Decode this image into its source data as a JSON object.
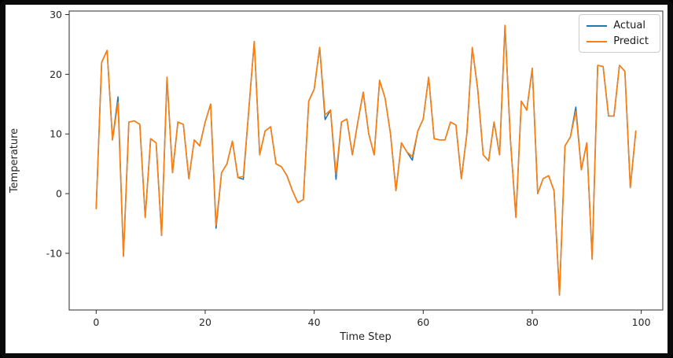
{
  "window": {
    "frame_color": "#0a0a0a",
    "figure_background": "#ffffff"
  },
  "chart_data": {
    "type": "line",
    "title": "",
    "xlabel": "Time Step",
    "ylabel": "Temperature",
    "x_start": 0,
    "x_step": 1,
    "n_points": 100,
    "xlim": [
      -4.95,
      103.95
    ],
    "ylim": [
      -19.5,
      30.6
    ],
    "xticks": [
      0,
      20,
      40,
      60,
      80,
      100
    ],
    "yticks": [
      -10,
      0,
      10,
      20,
      30
    ],
    "grid": false,
    "legend_position": "upper right",
    "series": [
      {
        "name": "Actual",
        "color": "#1f77b4",
        "values": [
          -2.5,
          22,
          24,
          9,
          16.2,
          -10.5,
          12,
          12.2,
          11.6,
          -4,
          9.2,
          8.5,
          -7,
          19.5,
          3.5,
          12,
          11.6,
          2.5,
          9,
          8,
          12,
          15,
          -5.8,
          3.5,
          5,
          8.8,
          2.7,
          2.4,
          14,
          25.5,
          6.5,
          10.5,
          11.2,
          5,
          4.5,
          3,
          0.5,
          -1.5,
          -1,
          15.5,
          17.5,
          24.5,
          12.4,
          14,
          2.4,
          12,
          12.5,
          6.5,
          12,
          17,
          10,
          6.5,
          19,
          16,
          10,
          0.5,
          8.5,
          7,
          5.6,
          10.5,
          12.5,
          19.5,
          9.2,
          9,
          9,
          12,
          11.5,
          2.5,
          10,
          24.5,
          17.5,
          6.5,
          5.5,
          12,
          6.5,
          28.2,
          9,
          -4,
          15.5,
          14,
          21,
          0,
          2.5,
          3,
          0.5,
          -17,
          8,
          9.5,
          14.5,
          4,
          8.5,
          -11,
          21.5,
          21.3,
          13,
          13,
          21.5,
          20.5,
          1,
          10.5
        ]
      },
      {
        "name": "Predict",
        "color": "#ff7f0e",
        "values": [
          -2.5,
          22,
          24,
          9,
          15.3,
          -10.5,
          12,
          12.2,
          11.6,
          -4,
          9.2,
          8.5,
          -7,
          19.5,
          3.5,
          12,
          11.6,
          2.5,
          9,
          8,
          12,
          15,
          -5.3,
          3.5,
          5,
          8.8,
          2.7,
          2.9,
          14,
          25.5,
          6.5,
          10.5,
          11.2,
          5,
          4.5,
          3,
          0.5,
          -1.5,
          -1,
          15.5,
          17.5,
          24.5,
          13.2,
          14,
          3.2,
          12,
          12.5,
          6.5,
          12,
          17,
          10,
          6.5,
          19,
          16,
          10,
          0.5,
          8.5,
          7,
          6.2,
          10.5,
          12.5,
          19.5,
          9.2,
          9,
          9,
          12,
          11.5,
          2.5,
          10,
          24.5,
          17.5,
          6.5,
          5.5,
          12,
          6.5,
          28.2,
          9,
          -4,
          15.5,
          14,
          21,
          0,
          2.5,
          3,
          0.5,
          -17,
          8,
          9.5,
          13.8,
          4,
          8.5,
          -11,
          21.5,
          21.3,
          13,
          13,
          21.5,
          20.5,
          1,
          10.5
        ]
      }
    ]
  }
}
